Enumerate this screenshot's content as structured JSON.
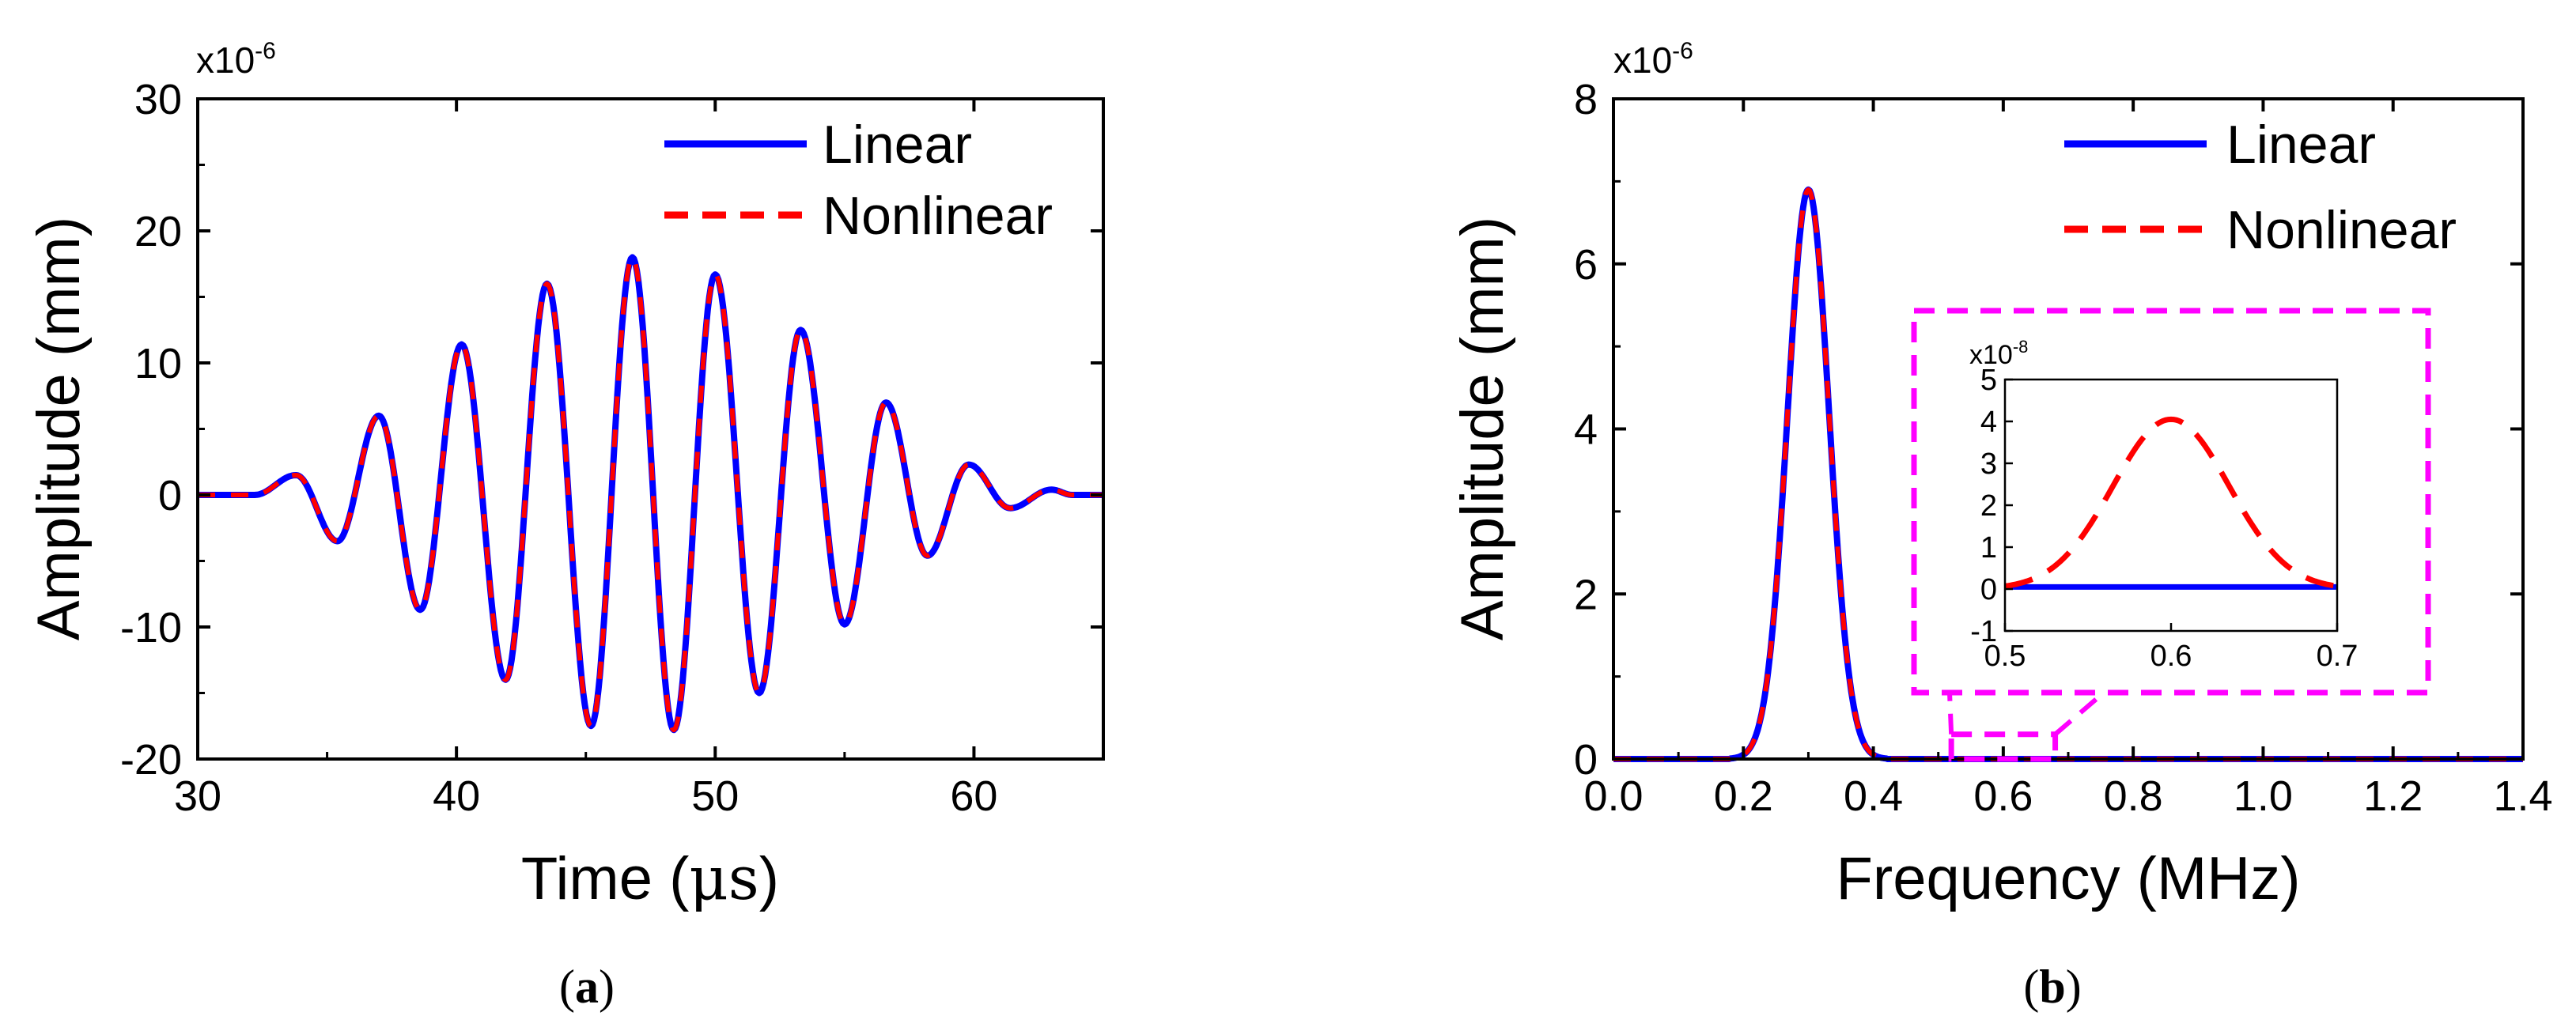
{
  "colors": {
    "linear": "#0000ff",
    "nonlinear": "#ff0000",
    "zoom": "#ff00ff",
    "axis": "#000000"
  },
  "panels": {
    "a": {
      "caption_open": "(",
      "caption_letter": "a",
      "caption_close": ")"
    },
    "b": {
      "caption_open": "(",
      "caption_letter": "b",
      "caption_close": ")"
    }
  },
  "chart_data": [
    {
      "id": "a",
      "type": "line",
      "title": "",
      "xlabel_main": "Time (",
      "xlabel_unit": "μs",
      "xlabel_close": ")",
      "ylabel": "Amplitude (mm)",
      "xlim": [
        30,
        65
      ],
      "ylim": [
        -20,
        30
      ],
      "xticks": [
        30,
        40,
        50,
        60
      ],
      "yticks": [
        -20,
        -10,
        0,
        10,
        20,
        30
      ],
      "xtick_labels": [
        "30",
        "40",
        "50",
        "60"
      ],
      "ytick_labels": [
        "-20",
        "-10",
        "0",
        "10",
        "20",
        "30"
      ],
      "y_exponent_base": "x10",
      "y_exponent_power": "-6",
      "legend_position": "top-right",
      "signal": {
        "center": 47.0,
        "frequency_mhz": 0.3,
        "envelope_sigma": 7.6,
        "peak": 18.0,
        "start": 32.0,
        "end": 63.0
      },
      "extrema": [
        {
          "x": 33.8,
          "y": 1.5
        },
        {
          "x": 35.4,
          "y": -3.5
        },
        {
          "x": 37.0,
          "y": 6.0
        },
        {
          "x": 38.6,
          "y": -8.7
        },
        {
          "x": 40.2,
          "y": 11.4
        },
        {
          "x": 41.9,
          "y": -14.0
        },
        {
          "x": 43.5,
          "y": 16.0
        },
        {
          "x": 45.2,
          "y": -17.5
        },
        {
          "x": 46.8,
          "y": 18.0
        },
        {
          "x": 48.4,
          "y": -17.8
        },
        {
          "x": 50.0,
          "y": 16.7
        },
        {
          "x": 51.7,
          "y": -15.0
        },
        {
          "x": 53.3,
          "y": 12.5
        },
        {
          "x": 55.0,
          "y": -9.8
        },
        {
          "x": 56.6,
          "y": 7.0
        },
        {
          "x": 58.2,
          "y": -4.6
        },
        {
          "x": 59.8,
          "y": 2.3
        },
        {
          "x": 61.4,
          "y": -1.0
        },
        {
          "x": 63.0,
          "y": 0.4
        }
      ],
      "series": [
        {
          "name": "Linear",
          "style": "solid",
          "color": "#0000ff"
        },
        {
          "name": "Nonlinear",
          "style": "dashed",
          "color": "#ff0000"
        }
      ]
    },
    {
      "id": "b",
      "type": "line",
      "title": "",
      "xlabel": "Frequency (MHz)",
      "ylabel": "Amplitude (mm)",
      "xlim": [
        0.0,
        1.4
      ],
      "ylim": [
        0,
        8
      ],
      "xticks": [
        0.0,
        0.2,
        0.4,
        0.6,
        0.8,
        1.0,
        1.2,
        1.4
      ],
      "yticks": [
        0,
        2,
        4,
        6,
        8
      ],
      "xtick_labels": [
        "0.0",
        "0.2",
        "0.4",
        "0.6",
        "0.8",
        "1.0",
        "1.2",
        "1.4"
      ],
      "ytick_labels": [
        "0",
        "2",
        "4",
        "6",
        "8"
      ],
      "y_exponent_base": "x10",
      "y_exponent_power": "-6",
      "legend_position": "top-right",
      "peak": {
        "x": 0.3,
        "y": 6.9,
        "sigma": 0.032
      },
      "zoom_region": {
        "x": [
          0.52,
          0.68
        ],
        "y": [
          0,
          0.3
        ]
      },
      "series": [
        {
          "name": "Linear",
          "style": "solid",
          "color": "#0000ff"
        },
        {
          "name": "Nonlinear",
          "style": "dashed",
          "color": "#ff0000"
        }
      ],
      "inset": {
        "xlim": [
          0.5,
          0.7
        ],
        "ylim": [
          -1,
          5
        ],
        "xticks": [
          0.5,
          0.6,
          0.7
        ],
        "yticks": [
          -1,
          0,
          1,
          2,
          3,
          4,
          5
        ],
        "xtick_labels": [
          "0.5",
          "0.6",
          "0.7"
        ],
        "ytick_labels": [
          "-1",
          "0",
          "1",
          "2",
          "3",
          "4",
          "5"
        ],
        "y_exponent_base": "x10",
        "y_exponent_power": "-8",
        "linear_value": 0.05,
        "nonlinear_peak": {
          "x": 0.6,
          "y": 4.05,
          "sigma": 0.035
        }
      }
    }
  ]
}
